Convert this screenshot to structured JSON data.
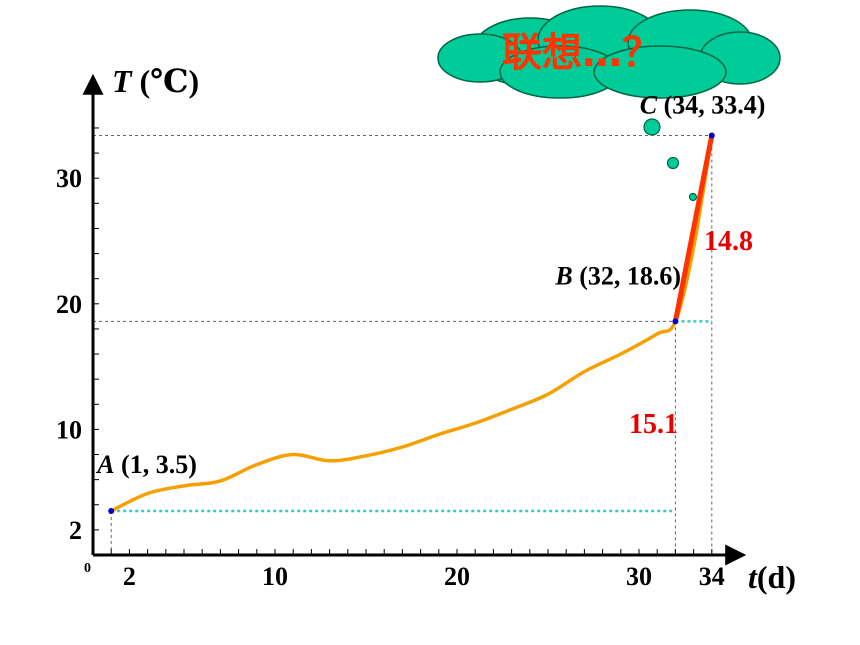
{
  "chart_data": {
    "type": "line",
    "xlabel_italic": "t",
    "xlabel_unit": "(d)",
    "ylabel_italic": "T",
    "ylabel_unit": " (℃)",
    "origin_label": "0",
    "xlim": [
      0,
      36
    ],
    "ylim": [
      0,
      36
    ],
    "x_ticks": [
      {
        "value": 2,
        "label": "2"
      },
      {
        "value": 10,
        "label": "10"
      },
      {
        "value": 20,
        "label": "20"
      },
      {
        "value": 30,
        "label": "30"
      },
      {
        "value": 34,
        "label": "34"
      }
    ],
    "y_ticks": [
      {
        "value": 2,
        "label": "2"
      },
      {
        "value": 10,
        "label": "10"
      },
      {
        "value": 20,
        "label": "20"
      },
      {
        "value": 30,
        "label": "30"
      }
    ],
    "curve": {
      "color": "#f5a000",
      "x": [
        1,
        3,
        5,
        7,
        9,
        11,
        13,
        15,
        17,
        19,
        21,
        23,
        25,
        27,
        29,
        31,
        32,
        33,
        34
      ],
      "y": [
        3.5,
        4.9,
        5.5,
        5.9,
        7.2,
        8.0,
        7.5,
        7.9,
        8.6,
        9.6,
        10.5,
        11.6,
        12.8,
        14.6,
        16.0,
        17.6,
        18.6,
        24.5,
        33.4
      ]
    },
    "points": [
      {
        "id": "A",
        "name": "A",
        "coords": " (1, 3.5)",
        "x": 1,
        "y": 3.5
      },
      {
        "id": "B",
        "name": "B",
        "coords": " (32, 18.6)",
        "x": 32,
        "y": 18.6
      },
      {
        "id": "C",
        "name": "C",
        "coords": " (34, 33.4)",
        "x": 34,
        "y": 33.4
      }
    ],
    "secant": {
      "from": "B",
      "to": "C",
      "color": "#ff3300"
    },
    "annotations": {
      "diff_BC": "14.8",
      "diff_AB": "15.1"
    },
    "cloud": {
      "text": "联想…？",
      "fill": "#00cc99",
      "text_color": "#ff3300"
    },
    "colors": {
      "guide_cyan": "#33cccc",
      "guide_gray": "#666666",
      "point_blue": "#0000cc"
    }
  }
}
